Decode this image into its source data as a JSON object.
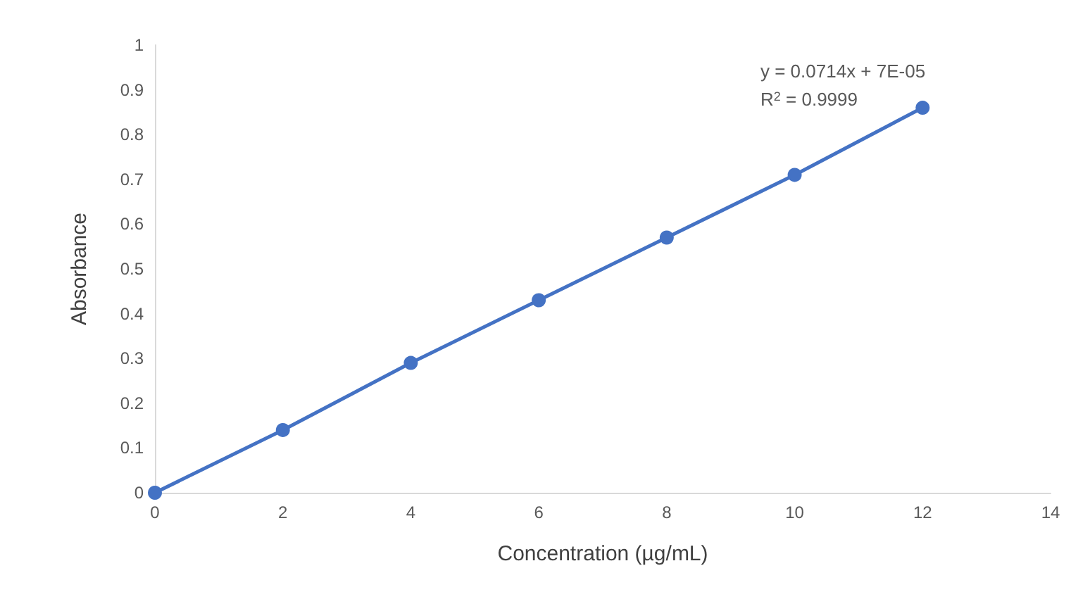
{
  "chart_data": {
    "type": "line",
    "xlabel": "Concentration (µg/mL)",
    "ylabel": "Absorbance",
    "x": [
      0,
      2,
      4,
      6,
      8,
      10,
      12
    ],
    "series": [
      {
        "color": "#4472c4",
        "values": [
          0,
          0.14,
          0.29,
          0.43,
          0.57,
          0.71,
          0.86
        ]
      }
    ],
    "xlim": [
      0,
      14
    ],
    "xticks": [
      0,
      2,
      4,
      6,
      8,
      10,
      12,
      14
    ],
    "ylim": [
      0,
      1
    ],
    "yticks": [
      0,
      0.1,
      0.2,
      0.3,
      0.4,
      0.5,
      0.6,
      0.7,
      0.8,
      0.9,
      1
    ],
    "annotations": [
      "y = 0.0714x + 7E-05",
      "R$^{2}$ = 0.9999"
    ],
    "grid": false,
    "marker": "circle",
    "line_style": "solid"
  }
}
